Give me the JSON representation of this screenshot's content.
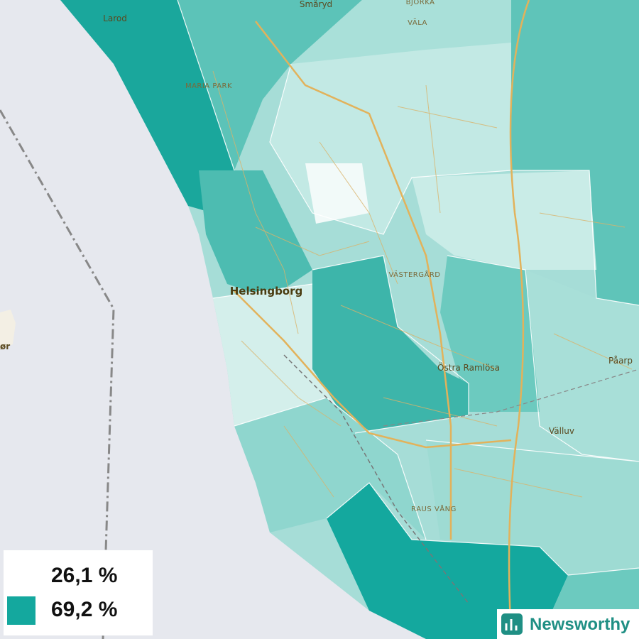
{
  "places": [
    {
      "label": "Larod"
    },
    {
      "label": "Småryd"
    },
    {
      "label": "BJÖRKA"
    },
    {
      "label": "VÄLA"
    },
    {
      "label": "MARIA PARK"
    },
    {
      "label": "Helsingborg"
    },
    {
      "label": "VÄSTERGÅRD"
    },
    {
      "label": "Östra Ramlösa"
    },
    {
      "label": "Påarp"
    },
    {
      "label": "Välluv"
    },
    {
      "label": "RAUS VÅNG"
    },
    {
      "label": "ør"
    }
  ],
  "legend": [
    {
      "label": "26,1 %",
      "color": "#ffffff"
    },
    {
      "label": "69,2 %",
      "color": "#14a89e"
    }
  ],
  "brand": "Newsworthy"
}
